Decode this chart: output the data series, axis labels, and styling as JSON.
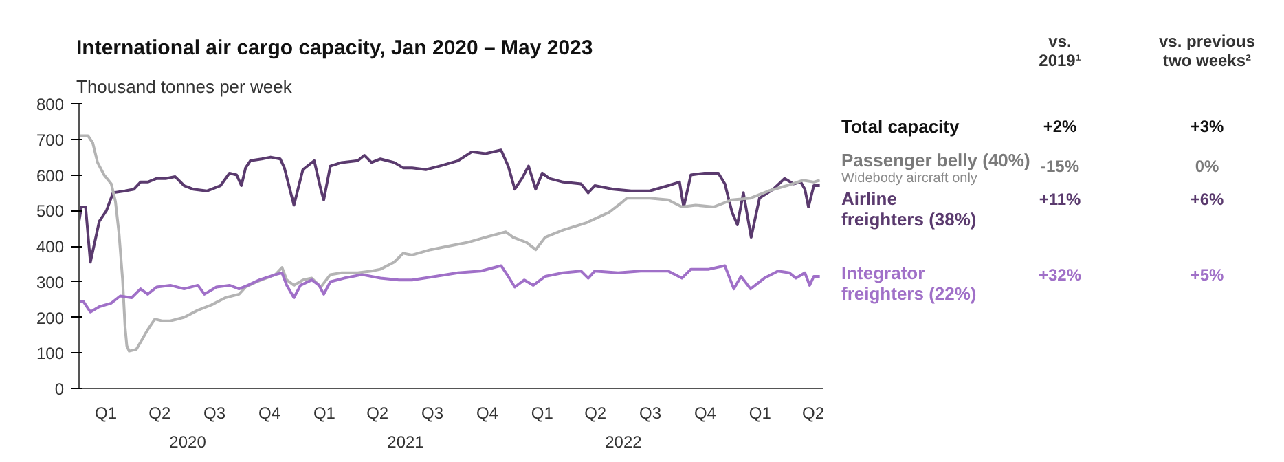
{
  "chart_data": {
    "type": "line",
    "title": "International air cargo capacity, Jan 2020 – May 2023",
    "subtitle": "Thousand tonnes per week",
    "ylim": [
      0,
      800
    ],
    "yticks": [
      0,
      100,
      200,
      300,
      400,
      500,
      600,
      700,
      800
    ],
    "xlim": [
      "2020-01-01",
      "2023-05-31"
    ],
    "xticks": [
      {
        "value": "2020-02-15",
        "label": "Q1"
      },
      {
        "value": "2020-05-15",
        "label": "Q2"
      },
      {
        "value": "2020-08-15",
        "label": "Q3"
      },
      {
        "value": "2020-11-15",
        "label": "Q4"
      },
      {
        "value": "2021-02-15",
        "label": "Q1"
      },
      {
        "value": "2021-05-15",
        "label": "Q2"
      },
      {
        "value": "2021-08-15",
        "label": "Q3"
      },
      {
        "value": "2021-11-15",
        "label": "Q4"
      },
      {
        "value": "2022-02-15",
        "label": "Q1"
      },
      {
        "value": "2022-05-15",
        "label": "Q2"
      },
      {
        "value": "2022-08-15",
        "label": "Q3"
      },
      {
        "value": "2022-11-15",
        "label": "Q4"
      },
      {
        "value": "2023-02-15",
        "label": "Q1"
      },
      {
        "value": "2023-05-15",
        "label": "Q2"
      }
    ],
    "grid": false,
    "legend": "right",
    "line_style": "solid",
    "marker": "none",
    "series": [
      {
        "name": "Airline freighters (38%)",
        "color": "#5a3a6e",
        "x": [
          "2020-01-01",
          "2020-01-05",
          "2020-01-12",
          "2020-01-20",
          "2020-02-04",
          "2020-02-16",
          "2020-02-27",
          "2020-03-18",
          "2020-04-02",
          "2020-04-13",
          "2020-04-25",
          "2020-05-10",
          "2020-05-25",
          "2020-06-10",
          "2020-06-25",
          "2020-07-10",
          "2020-08-02",
          "2020-08-25",
          "2020-09-09",
          "2020-09-21",
          "2020-09-29",
          "2020-10-06",
          "2020-10-14",
          "2020-11-02",
          "2020-11-17",
          "2020-12-03",
          "2020-12-10",
          "2020-12-26",
          "2021-01-10",
          "2021-01-29",
          "2021-02-09",
          "2021-02-14",
          "2021-02-25",
          "2021-03-16",
          "2021-04-12",
          "2021-04-23",
          "2021-05-05",
          "2021-05-20",
          "2021-06-12",
          "2021-06-27",
          "2021-07-12",
          "2021-08-04",
          "2021-08-27",
          "2021-09-27",
          "2021-10-20",
          "2021-11-12",
          "2021-12-08",
          "2021-12-20",
          "2021-12-31",
          "2022-01-12",
          "2022-01-23",
          "2022-02-04",
          "2022-02-15",
          "2022-02-27",
          "2022-03-22",
          "2022-04-21",
          "2022-05-03",
          "2022-05-14",
          "2022-06-14",
          "2022-07-14",
          "2022-08-14",
          "2022-09-14",
          "2022-10-03",
          "2022-10-10",
          "2022-10-22",
          "2022-11-14",
          "2022-12-07",
          "2022-12-18",
          "2022-12-30",
          "2023-01-08",
          "2023-01-18",
          "2023-01-31",
          "2023-02-14",
          "2023-03-09",
          "2023-03-28",
          "2023-04-12",
          "2023-04-24",
          "2023-05-01",
          "2023-05-07",
          "2023-05-16",
          "2023-05-26"
        ],
        "values": [
          470,
          510,
          510,
          355,
          470,
          500,
          550,
          555,
          560,
          580,
          580,
          590,
          590,
          595,
          570,
          560,
          555,
          570,
          605,
          600,
          570,
          620,
          640,
          645,
          650,
          645,
          620,
          515,
          615,
          640,
          560,
          530,
          625,
          635,
          640,
          655,
          635,
          645,
          635,
          620,
          620,
          615,
          625,
          640,
          665,
          660,
          670,
          625,
          560,
          590,
          625,
          560,
          605,
          590,
          580,
          575,
          550,
          570,
          560,
          555,
          555,
          570,
          580,
          510,
          600,
          605,
          605,
          575,
          495,
          460,
          550,
          425,
          535,
          560,
          590,
          575,
          580,
          560,
          510,
          570,
          570
        ]
      },
      {
        "name": "Passenger belly (40%)",
        "color": "#b4b4b4",
        "x": [
          "2020-01-01",
          "2020-01-16",
          "2020-01-24",
          "2020-02-01",
          "2020-02-12",
          "2020-02-24",
          "2020-03-02",
          "2020-03-08",
          "2020-03-14",
          "2020-03-18",
          "2020-03-21",
          "2020-03-25",
          "2020-04-06",
          "2020-04-13",
          "2020-04-25",
          "2020-05-07",
          "2020-05-19",
          "2020-06-02",
          "2020-06-25",
          "2020-07-18",
          "2020-08-10",
          "2020-09-02",
          "2020-09-25",
          "2020-10-06",
          "2020-10-25",
          "2020-11-25",
          "2020-12-06",
          "2020-12-14",
          "2020-12-26",
          "2021-01-10",
          "2021-01-25",
          "2021-02-09",
          "2021-02-25",
          "2021-03-16",
          "2021-04-12",
          "2021-05-05",
          "2021-05-20",
          "2021-06-12",
          "2021-06-27",
          "2021-07-12",
          "2021-08-12",
          "2021-09-11",
          "2021-10-12",
          "2021-11-12",
          "2021-12-16",
          "2021-12-28",
          "2022-01-20",
          "2022-02-04",
          "2022-02-20",
          "2022-03-22",
          "2022-04-29",
          "2022-06-07",
          "2022-06-30",
          "2022-07-07",
          "2022-08-14",
          "2022-09-14",
          "2022-10-07",
          "2022-10-30",
          "2022-11-29",
          "2022-12-30",
          "2023-01-30",
          "2023-03-01",
          "2023-04-01",
          "2023-04-28",
          "2023-05-16",
          "2023-05-26"
        ],
        "values": [
          710,
          710,
          690,
          635,
          600,
          575,
          525,
          435,
          305,
          175,
          120,
          105,
          110,
          130,
          165,
          195,
          190,
          190,
          200,
          220,
          235,
          255,
          265,
          285,
          300,
          320,
          340,
          305,
          290,
          305,
          310,
          285,
          320,
          325,
          325,
          330,
          335,
          355,
          380,
          375,
          390,
          400,
          410,
          425,
          440,
          425,
          410,
          390,
          425,
          445,
          465,
          495,
          525,
          535,
          535,
          530,
          510,
          515,
          510,
          530,
          535,
          555,
          570,
          585,
          580,
          585
        ]
      },
      {
        "name": "Integrator freighters (22%)",
        "color": "#a070c8",
        "x": [
          "2020-01-01",
          "2020-01-08",
          "2020-01-20",
          "2020-02-04",
          "2020-02-24",
          "2020-03-10",
          "2020-03-29",
          "2020-04-13",
          "2020-04-25",
          "2020-05-10",
          "2020-06-02",
          "2020-06-25",
          "2020-07-18",
          "2020-07-29",
          "2020-08-18",
          "2020-09-09",
          "2020-09-25",
          "2020-10-10",
          "2020-10-29",
          "2020-11-25",
          "2020-12-06",
          "2020-12-14",
          "2020-12-26",
          "2021-01-06",
          "2021-01-25",
          "2021-02-06",
          "2021-02-14",
          "2021-02-25",
          "2021-03-20",
          "2021-04-19",
          "2021-05-20",
          "2021-06-20",
          "2021-07-12",
          "2021-08-20",
          "2021-09-27",
          "2021-11-04",
          "2021-12-08",
          "2021-12-20",
          "2021-12-31",
          "2022-01-16",
          "2022-01-31",
          "2022-02-20",
          "2022-03-22",
          "2022-04-21",
          "2022-05-03",
          "2022-05-14",
          "2022-06-22",
          "2022-07-30",
          "2022-09-14",
          "2022-10-07",
          "2022-10-22",
          "2022-11-21",
          "2022-12-18",
          "2023-01-02",
          "2023-01-14",
          "2023-01-30",
          "2023-02-22",
          "2023-03-17",
          "2023-04-05",
          "2023-04-16",
          "2023-05-01",
          "2023-05-09",
          "2023-05-16",
          "2023-05-26"
        ],
        "values": [
          245,
          245,
          215,
          230,
          240,
          260,
          255,
          280,
          265,
          285,
          290,
          280,
          290,
          265,
          285,
          290,
          280,
          290,
          305,
          320,
          325,
          290,
          255,
          290,
          305,
          290,
          265,
          300,
          310,
          320,
          310,
          305,
          305,
          315,
          325,
          330,
          345,
          315,
          285,
          305,
          290,
          315,
          325,
          330,
          310,
          330,
          325,
          330,
          330,
          310,
          335,
          335,
          345,
          280,
          315,
          280,
          310,
          330,
          325,
          310,
          325,
          290,
          315,
          315
        ]
      }
    ],
    "annotations": [
      "vs.\n2019¹",
      "vs. previous\ntwo weeks²",
      "Total capacity",
      "+2%",
      "+3%",
      "Widebody aircraft only",
      "-15%",
      "0%",
      "+11%",
      "+6%",
      "+32%",
      "+5%",
      "2020",
      "2021",
      "2022"
    ]
  }
}
